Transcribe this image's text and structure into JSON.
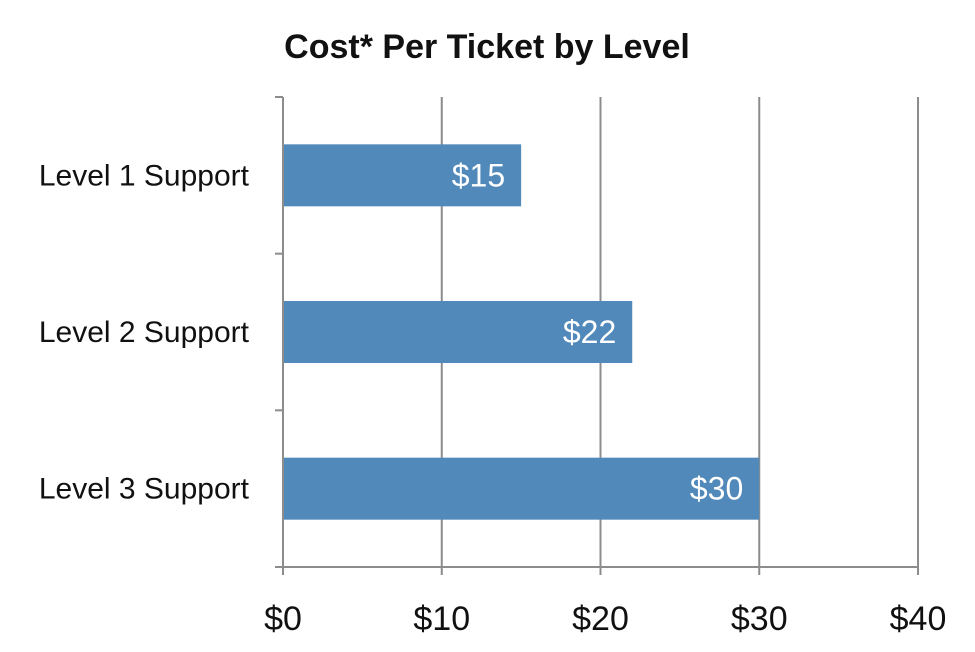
{
  "chart_data": {
    "type": "bar",
    "orientation": "horizontal",
    "title": "Cost* Per Ticket by Level",
    "categories": [
      "Level 1 Support",
      "Level 2 Support",
      "Level 3 Support"
    ],
    "values": [
      15,
      22,
      30
    ],
    "data_labels": [
      "$15",
      "$22",
      "$30"
    ],
    "xlim": [
      0,
      40
    ],
    "x_ticks": [
      0,
      10,
      20,
      30,
      40
    ],
    "x_tick_labels": [
      "$0",
      "$10",
      "$20",
      "$30",
      "$40"
    ],
    "grid": true,
    "legend": "none",
    "bar_color": "#5289bb",
    "grid_color": "#8c8c8c",
    "axis_color": "#8c8c8c"
  }
}
